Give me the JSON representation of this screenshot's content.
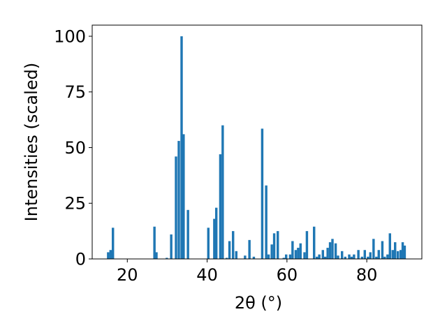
{
  "chart_data": {
    "type": "bar",
    "title": "",
    "xlabel": "2θ (°)",
    "ylabel": "Intensities (scaled)",
    "xlim": [
      11.2,
      93.8
    ],
    "ylim": [
      0,
      105
    ],
    "xticks": [
      20,
      40,
      60,
      80
    ],
    "yticks": [
      0,
      25,
      50,
      75,
      100
    ],
    "bar_color": "#1f77b4",
    "grid": false,
    "legend": "none",
    "bar_width": 0.6,
    "x": [
      15.2,
      15.8,
      16.4,
      26.8,
      27.3,
      29.9,
      31.0,
      32.2,
      32.9,
      33.6,
      34.1,
      35.2,
      40.3,
      41.8,
      42.3,
      43.3,
      43.9,
      44.9,
      45.6,
      46.5,
      47.3,
      49.5,
      50.6,
      51.7,
      53.8,
      54.8,
      55.4,
      56.2,
      56.8,
      57.7,
      59.2,
      59.8,
      60.8,
      61.4,
      62.2,
      62.8,
      63.4,
      64.4,
      65.0,
      66.8,
      67.5,
      68.1,
      69.0,
      69.6,
      70.2,
      70.8,
      71.4,
      72.2,
      72.8,
      73.8,
      74.6,
      75.6,
      76.2,
      76.8,
      77.9,
      78.8,
      79.5,
      80.3,
      80.9,
      81.7,
      82.4,
      83.0,
      83.9,
      84.5,
      85.2,
      85.8,
      86.5,
      87.1,
      87.8,
      88.5,
      89.0,
      89.5
    ],
    "values": [
      3,
      4,
      14,
      14.5,
      3,
      0.5,
      11,
      46,
      53,
      100,
      56,
      22,
      14,
      18,
      23,
      47,
      60,
      0.5,
      8,
      12.5,
      3.5,
      1.5,
      8.5,
      1,
      58.5,
      33,
      2,
      6.5,
      11.5,
      12.5,
      0.5,
      2,
      2,
      8,
      4,
      5,
      7,
      3,
      12.5,
      14.5,
      1,
      2,
      4,
      1,
      5,
      7.5,
      9,
      7,
      1.5,
      3.5,
      1,
      2,
      1,
      2,
      4,
      1,
      4,
      1,
      3,
      9,
      1,
      4,
      8,
      1,
      2,
      11.5,
      4,
      7.5,
      3.5,
      4,
      7.5,
      6
    ]
  }
}
